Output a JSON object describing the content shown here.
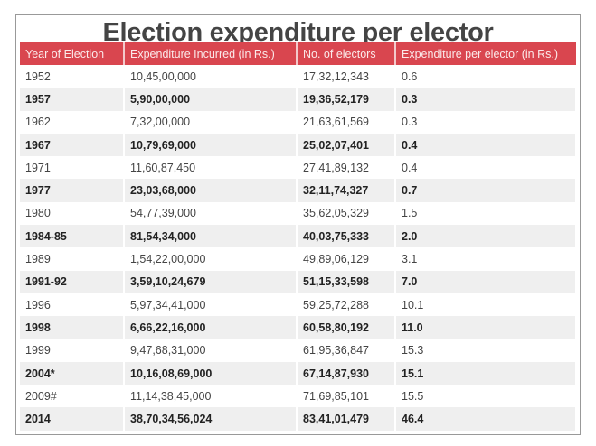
{
  "title": "Election expenditure per elector",
  "colors": {
    "header_bg": "#d9464f",
    "stripe_bg": "#efefef"
  },
  "table": {
    "headers": [
      "Year of Election",
      "Expenditure Incurred (in Rs.)",
      "No. of electors",
      "Expenditure per elector (in Rs.)"
    ],
    "rows": [
      [
        "1952",
        "10,45,00,000",
        "17,32,12,343",
        "0.6"
      ],
      [
        "1957",
        "5,90,00,000",
        "19,36,52,179",
        "0.3"
      ],
      [
        "1962",
        "7,32,00,000",
        "21,63,61,569",
        "0.3"
      ],
      [
        "1967",
        "10,79,69,000",
        "25,02,07,401",
        "0.4"
      ],
      [
        "1971",
        "11,60,87,450",
        "27,41,89,132",
        "0.4"
      ],
      [
        "1977",
        "23,03,68,000",
        "32,11,74,327",
        "0.7"
      ],
      [
        "1980",
        "54,77,39,000",
        "35,62,05,329",
        "1.5"
      ],
      [
        "1984-85",
        "81,54,34,000",
        "40,03,75,333",
        "2.0"
      ],
      [
        "1989",
        "1,54,22,00,000",
        "49,89,06,129",
        "3.1"
      ],
      [
        "1991-92",
        "3,59,10,24,679",
        "51,15,33,598",
        "7.0"
      ],
      [
        "1996",
        "5,97,34,41,000",
        "59,25,72,288",
        "10.1"
      ],
      [
        "1998",
        "6,66,22,16,000",
        "60,58,80,192",
        "11.0"
      ],
      [
        "1999",
        "9,47,68,31,000",
        "61,95,36,847",
        "15.3"
      ],
      [
        "2004*",
        "10,16,08,69,000",
        "67,14,87,930",
        "15.1"
      ],
      [
        "2009#",
        "11,14,38,45,000",
        "71,69,85,101",
        "15.5"
      ],
      [
        "2014",
        "38,70,34,56,024",
        "83,41,01,479",
        "46.4"
      ]
    ]
  }
}
